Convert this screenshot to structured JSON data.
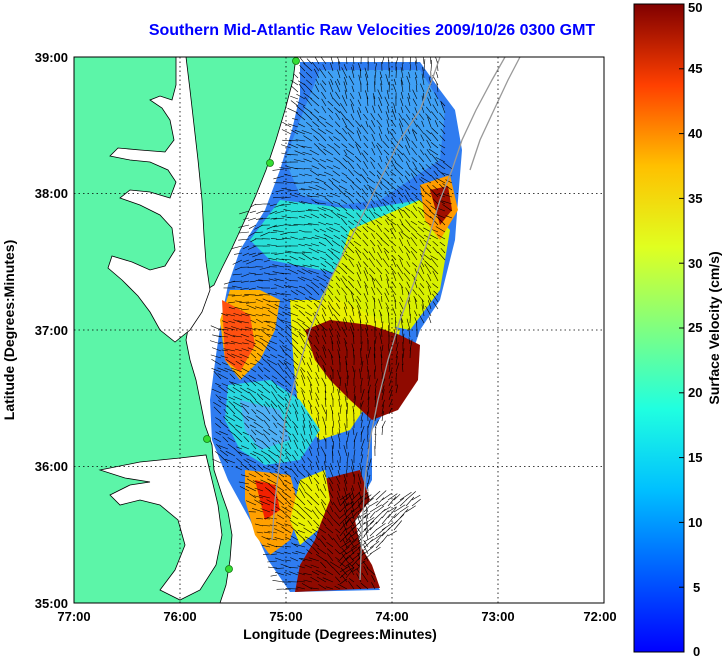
{
  "title": "Southern Mid-Atlantic Raw Velocities 2009/10/26 0300 GMT",
  "axes": {
    "xlabel": "Longitude (Degrees:Minutes)",
    "ylabel": "Latitude (Degrees:Minutes)",
    "xticks": [
      "77:00",
      "76:00",
      "75:00",
      "74:00",
      "73:00",
      "72:00"
    ],
    "yticks": [
      "39:00",
      "38:00",
      "37:00",
      "36:00",
      "35:00"
    ],
    "xlim": [
      -77,
      -72
    ],
    "ylim": [
      35,
      39
    ],
    "grid": "dotted"
  },
  "colorbar": {
    "label": "Surface Velocity (cm/s)",
    "ticks": [
      "50",
      "45",
      "40",
      "35",
      "30",
      "25",
      "20",
      "15",
      "10",
      "5",
      "0"
    ],
    "range": [
      0,
      50
    ],
    "colormap": "jet"
  },
  "colors": {
    "land": "#5cf5a8",
    "ocean": "#ffffff",
    "title": "#0000ff",
    "stations": "#33dd33"
  }
}
